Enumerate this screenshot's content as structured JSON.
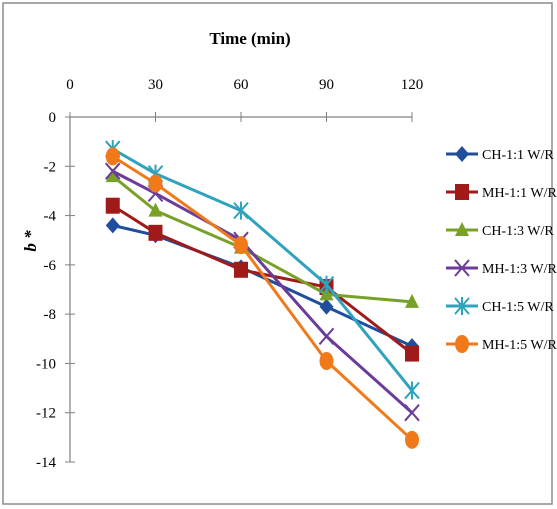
{
  "chart_data": {
    "type": "line",
    "title": "",
    "xlabel": "Time (min)",
    "ylabel": "b *",
    "x_axis_position": "top",
    "x_ticks": [
      0,
      30,
      60,
      90,
      120
    ],
    "y_ticks": [
      0,
      -2,
      -4,
      -6,
      -8,
      -10,
      -12,
      -14
    ],
    "xlim": [
      0,
      120
    ],
    "ylim": [
      -14,
      0
    ],
    "x": [
      15,
      30,
      60,
      90,
      120
    ],
    "legend_position": "right",
    "grid": false,
    "series": [
      {
        "name": "CH-1:1 W/R",
        "color": "#1f4e9c",
        "marker": "diamond",
        "values": [
          -4.4,
          -4.8,
          -6.1,
          -7.7,
          -9.3
        ]
      },
      {
        "name": "MH-1:1 W/R",
        "color": "#a11a1a",
        "marker": "square",
        "values": [
          -3.6,
          -4.7,
          -6.2,
          -6.9,
          -9.6
        ]
      },
      {
        "name": "CH-1:3 W/R",
        "color": "#77a127",
        "marker": "triangle",
        "values": [
          -2.4,
          -3.8,
          -5.3,
          -7.2,
          -7.5
        ]
      },
      {
        "name": "MH-1:3 W/R",
        "color": "#6c3c99",
        "marker": "x",
        "values": [
          -2.2,
          -3.1,
          -5.0,
          -8.9,
          -12.0
        ]
      },
      {
        "name": "CH-1:5 W/R",
        "color": "#2fa3bd",
        "marker": "star",
        "values": [
          -1.3,
          -2.3,
          -3.8,
          -6.8,
          -11.1
        ]
      },
      {
        "name": "MH-1:5 W/R",
        "color": "#f07a1a",
        "marker": "circle",
        "values": [
          -1.6,
          -2.7,
          -5.2,
          -9.9,
          -13.1
        ]
      }
    ]
  }
}
